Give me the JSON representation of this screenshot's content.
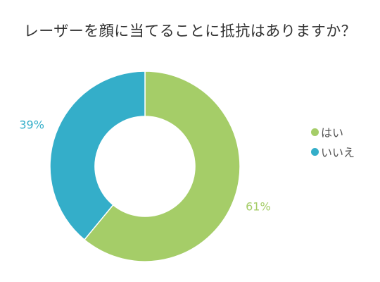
{
  "chart_data": {
    "type": "pie",
    "variant": "donut",
    "title": "レーザーを顔に当てることに抵抗はありますか？",
    "categories": [
      "はい",
      "いいえ"
    ],
    "values": [
      61,
      39
    ],
    "labels": [
      "61%",
      "39%"
    ],
    "colors": [
      "#a5cd68",
      "#34aec9"
    ],
    "legend_position": "right"
  }
}
